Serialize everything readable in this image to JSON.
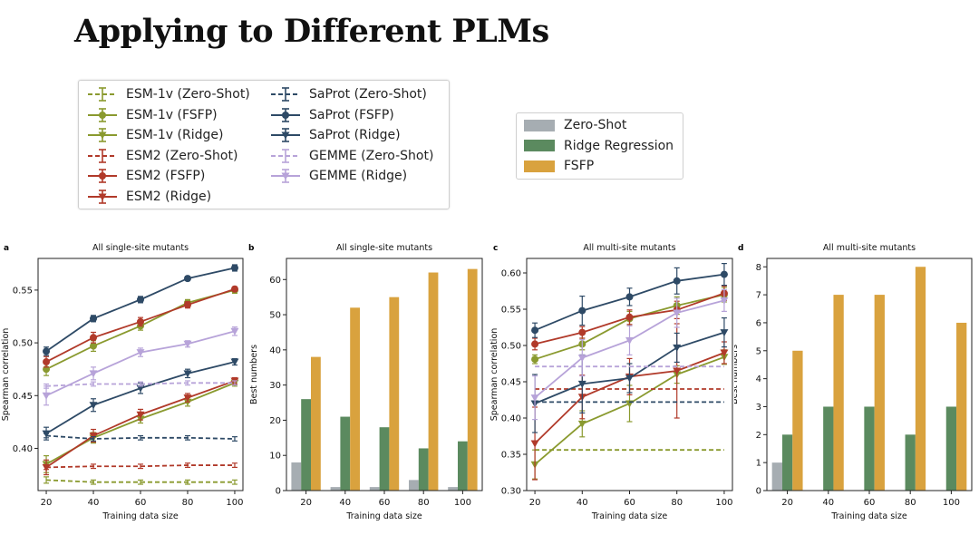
{
  "slide_title": "Applying to Different PLMs",
  "colors": {
    "esm1v": "#8a9a2f",
    "esm2": "#b13a2a",
    "saprot": "#2e4a66",
    "gemme": "#b7a3d9",
    "zero_shot": "#a6adb2",
    "ridge": "#5b8a5f",
    "fsfp": "#d9a23e"
  },
  "line_legend": [
    {
      "label": "ESM-1v (Zero-Shot)",
      "color": "esm1v",
      "marker": "none",
      "dashed": true
    },
    {
      "label": "ESM-1v (FSFP)",
      "color": "esm1v",
      "marker": "circle",
      "dashed": false
    },
    {
      "label": "ESM-1v (Ridge)",
      "color": "esm1v",
      "marker": "tri",
      "dashed": false
    },
    {
      "label": "ESM2 (Zero-Shot)",
      "color": "esm2",
      "marker": "none",
      "dashed": true
    },
    {
      "label": "ESM2 (FSFP)",
      "color": "esm2",
      "marker": "circle",
      "dashed": false
    },
    {
      "label": "ESM2 (Ridge)",
      "color": "esm2",
      "marker": "tri",
      "dashed": false
    },
    {
      "label": "SaProt (Zero-Shot)",
      "color": "saprot",
      "marker": "none",
      "dashed": true
    },
    {
      "label": "SaProt (FSFP)",
      "color": "saprot",
      "marker": "circle",
      "dashed": false
    },
    {
      "label": "SaProt (Ridge)",
      "color": "saprot",
      "marker": "tri",
      "dashed": false
    },
    {
      "label": "GEMME (Zero-Shot)",
      "color": "gemme",
      "marker": "none",
      "dashed": true
    },
    {
      "label": "GEMME (Ridge)",
      "color": "gemme",
      "marker": "tri",
      "dashed": false
    }
  ],
  "bar_legend": [
    {
      "label": "Zero-Shot",
      "color": "zero_shot"
    },
    {
      "label": "Ridge Regression",
      "color": "ridge"
    },
    {
      "label": "FSFP",
      "color": "fsfp"
    }
  ],
  "chart_data": [
    {
      "panel": "a",
      "type": "line",
      "title": "All single-site mutants",
      "xlabel": "Training data size",
      "ylabel": "Spearman correlation",
      "x": [
        20,
        40,
        60,
        80,
        100
      ],
      "xticks": [
        "20",
        "40",
        "60",
        "80",
        "100"
      ],
      "ylim": [
        0.36,
        0.58
      ],
      "yticks": [
        0.4,
        0.45,
        0.5,
        0.55
      ],
      "ytick_labels": [
        "0.40",
        "0.45",
        "0.50",
        "0.55"
      ],
      "series": [
        {
          "name": "ESM-1v (Zero-Shot)",
          "color": "esm1v",
          "marker": "none",
          "dashed": true,
          "values": [
            0.37,
            0.368,
            0.368,
            0.368,
            0.368
          ],
          "err": [
            0.003,
            0.002,
            0.002,
            0.002,
            0.002
          ]
        },
        {
          "name": "ESM-1v (FSFP)",
          "color": "esm1v",
          "marker": "circle",
          "dashed": false,
          "values": [
            0.475,
            0.497,
            0.516,
            0.538,
            0.55
          ],
          "err": [
            0.006,
            0.005,
            0.004,
            0.003,
            0.003
          ]
        },
        {
          "name": "ESM-1v (Ridge)",
          "color": "esm1v",
          "marker": "tri",
          "dashed": false,
          "values": [
            0.385,
            0.41,
            0.428,
            0.444,
            0.462
          ],
          "err": [
            0.008,
            0.005,
            0.004,
            0.004,
            0.003
          ]
        },
        {
          "name": "ESM2 (Zero-Shot)",
          "color": "esm2",
          "marker": "none",
          "dashed": true,
          "values": [
            0.382,
            0.383,
            0.383,
            0.384,
            0.384
          ],
          "err": [
            0.002,
            0.002,
            0.002,
            0.002,
            0.002
          ]
        },
        {
          "name": "ESM2 (FSFP)",
          "color": "esm2",
          "marker": "circle",
          "dashed": false,
          "values": [
            0.482,
            0.505,
            0.52,
            0.536,
            0.551
          ],
          "err": [
            0.005,
            0.005,
            0.004,
            0.003,
            0.002
          ]
        },
        {
          "name": "ESM2 (Ridge)",
          "color": "esm2",
          "marker": "tri",
          "dashed": false,
          "values": [
            0.382,
            0.412,
            0.432,
            0.448,
            0.464
          ],
          "err": [
            0.007,
            0.006,
            0.005,
            0.004,
            0.003
          ]
        },
        {
          "name": "SaProt (Zero-Shot)",
          "color": "saprot",
          "marker": "none",
          "dashed": true,
          "values": [
            0.412,
            0.409,
            0.41,
            0.41,
            0.409
          ],
          "err": [
            0.002,
            0.002,
            0.002,
            0.002,
            0.002
          ]
        },
        {
          "name": "SaProt (FSFP)",
          "color": "saprot",
          "marker": "circle",
          "dashed": false,
          "values": [
            0.492,
            0.523,
            0.541,
            0.561,
            0.571
          ],
          "err": [
            0.004,
            0.003,
            0.003,
            0.002,
            0.003
          ]
        },
        {
          "name": "SaProt (Ridge)",
          "color": "saprot",
          "marker": "tri",
          "dashed": false,
          "values": [
            0.414,
            0.441,
            0.457,
            0.471,
            0.482
          ],
          "err": [
            0.006,
            0.006,
            0.005,
            0.004,
            0.003
          ]
        },
        {
          "name": "GEMME (Zero-Shot)",
          "color": "gemme",
          "marker": "none",
          "dashed": true,
          "values": [
            0.459,
            0.461,
            0.461,
            0.462,
            0.462
          ],
          "err": [
            0.002,
            0.002,
            0.002,
            0.002,
            0.002
          ]
        },
        {
          "name": "GEMME (Ridge)",
          "color": "gemme",
          "marker": "tri",
          "dashed": false,
          "values": [
            0.45,
            0.471,
            0.491,
            0.499,
            0.511
          ],
          "err": [
            0.009,
            0.006,
            0.004,
            0.003,
            0.004
          ]
        }
      ]
    },
    {
      "panel": "b",
      "type": "bar",
      "title": "All single-site mutants",
      "xlabel": "Training data size",
      "ylabel": "Best numbers",
      "categories": [
        "20",
        "40",
        "60",
        "80",
        "100"
      ],
      "ylim": [
        0,
        66
      ],
      "yticks": [
        0,
        10,
        20,
        30,
        40,
        50,
        60
      ],
      "ytick_labels": [
        "0",
        "10",
        "20",
        "30",
        "40",
        "50",
        "60"
      ],
      "series": [
        {
          "name": "Zero-Shot",
          "color": "zero_shot",
          "values": [
            8,
            1,
            1,
            3,
            1
          ]
        },
        {
          "name": "Ridge Regression",
          "color": "ridge",
          "values": [
            26,
            21,
            18,
            12,
            14
          ]
        },
        {
          "name": "FSFP",
          "color": "fsfp",
          "values": [
            38,
            52,
            55,
            62,
            63
          ]
        }
      ]
    },
    {
      "panel": "c",
      "type": "line",
      "title": "All multi-site mutants",
      "xlabel": "Training data size",
      "ylabel": "Spearman correlation",
      "x": [
        20,
        40,
        60,
        80,
        100
      ],
      "xticks": [
        "20",
        "40",
        "60",
        "80",
        "100"
      ],
      "ylim": [
        0.3,
        0.62
      ],
      "yticks": [
        0.3,
        0.35,
        0.4,
        0.45,
        0.5,
        0.55,
        0.6
      ],
      "ytick_labels": [
        "0.30",
        "0.35",
        "0.40",
        "0.45",
        "0.50",
        "0.55",
        "0.60"
      ],
      "series": [
        {
          "name": "ESM-1v (Zero-Shot)",
          "color": "esm1v",
          "marker": "none",
          "dashed": true,
          "values": [
            0.356,
            0.356,
            0.356,
            0.356,
            0.356
          ],
          "err": [
            0,
            0,
            0,
            0,
            0
          ]
        },
        {
          "name": "ESM-1v (FSFP)",
          "color": "esm1v",
          "marker": "circle",
          "dashed": false,
          "values": [
            0.481,
            0.502,
            0.537,
            0.555,
            0.57
          ],
          "err": [
            0.006,
            0.008,
            0.01,
            0.012,
            0.01
          ]
        },
        {
          "name": "ESM-1v (Ridge)",
          "color": "esm1v",
          "marker": "tri",
          "dashed": false,
          "values": [
            0.336,
            0.392,
            0.42,
            0.46,
            0.484
          ],
          "err": [
            0.02,
            0.018,
            0.025,
            0.012,
            0.01
          ]
        },
        {
          "name": "ESM2 (Zero-Shot)",
          "color": "esm2",
          "marker": "none",
          "dashed": true,
          "values": [
            0.44,
            0.44,
            0.44,
            0.44,
            0.44
          ],
          "err": [
            0,
            0,
            0,
            0,
            0
          ]
        },
        {
          "name": "ESM2 (FSFP)",
          "color": "esm2",
          "marker": "circle",
          "dashed": false,
          "values": [
            0.502,
            0.518,
            0.539,
            0.549,
            0.572
          ],
          "err": [
            0.008,
            0.008,
            0.01,
            0.012,
            0.01
          ]
        },
        {
          "name": "ESM2 (Ridge)",
          "color": "esm2",
          "marker": "tri",
          "dashed": false,
          "values": [
            0.365,
            0.429,
            0.457,
            0.465,
            0.49
          ],
          "err": [
            0.05,
            0.03,
            0.025,
            0.065,
            0.015
          ]
        },
        {
          "name": "SaProt (Zero-Shot)",
          "color": "saprot",
          "marker": "none",
          "dashed": true,
          "values": [
            0.422,
            0.422,
            0.422,
            0.422,
            0.422
          ],
          "err": [
            0,
            0,
            0,
            0,
            0
          ]
        },
        {
          "name": "SaProt (FSFP)",
          "color": "saprot",
          "marker": "circle",
          "dashed": false,
          "values": [
            0.521,
            0.548,
            0.567,
            0.589,
            0.598
          ],
          "err": [
            0.01,
            0.02,
            0.012,
            0.018,
            0.015
          ]
        },
        {
          "name": "SaProt (Ridge)",
          "color": "saprot",
          "marker": "tri",
          "dashed": false,
          "values": [
            0.42,
            0.447,
            0.455,
            0.497,
            0.518
          ],
          "err": [
            0.04,
            0.04,
            0.02,
            0.02,
            0.02
          ]
        },
        {
          "name": "GEMME (Zero-Shot)",
          "color": "gemme",
          "marker": "none",
          "dashed": true,
          "values": [
            0.471,
            0.471,
            0.471,
            0.471,
            0.471
          ],
          "err": [
            0,
            0,
            0,
            0,
            0
          ]
        },
        {
          "name": "GEMME (Ridge)",
          "color": "gemme",
          "marker": "tri",
          "dashed": false,
          "values": [
            0.428,
            0.483,
            0.507,
            0.545,
            0.562
          ],
          "err": [
            0.03,
            0.025,
            0.02,
            0.02,
            0.015
          ]
        }
      ]
    },
    {
      "panel": "d",
      "type": "bar",
      "title": "All multi-site mutants",
      "xlabel": "Training data size",
      "ylabel": "Best numbers",
      "categories": [
        "20",
        "40",
        "60",
        "80",
        "100"
      ],
      "ylim": [
        0,
        8.3
      ],
      "yticks": [
        0,
        1,
        2,
        3,
        4,
        5,
        6,
        7,
        8
      ],
      "ytick_labels": [
        "0",
        "1",
        "2",
        "3",
        "4",
        "5",
        "6",
        "7",
        "8"
      ],
      "series": [
        {
          "name": "Zero-Shot",
          "color": "zero_shot",
          "values": [
            1,
            0,
            0,
            0,
            0
          ]
        },
        {
          "name": "Ridge Regression",
          "color": "ridge",
          "values": [
            2,
            3,
            3,
            2,
            3
          ]
        },
        {
          "name": "FSFP",
          "color": "fsfp",
          "values": [
            5,
            7,
            7,
            8,
            6
          ]
        }
      ]
    }
  ]
}
